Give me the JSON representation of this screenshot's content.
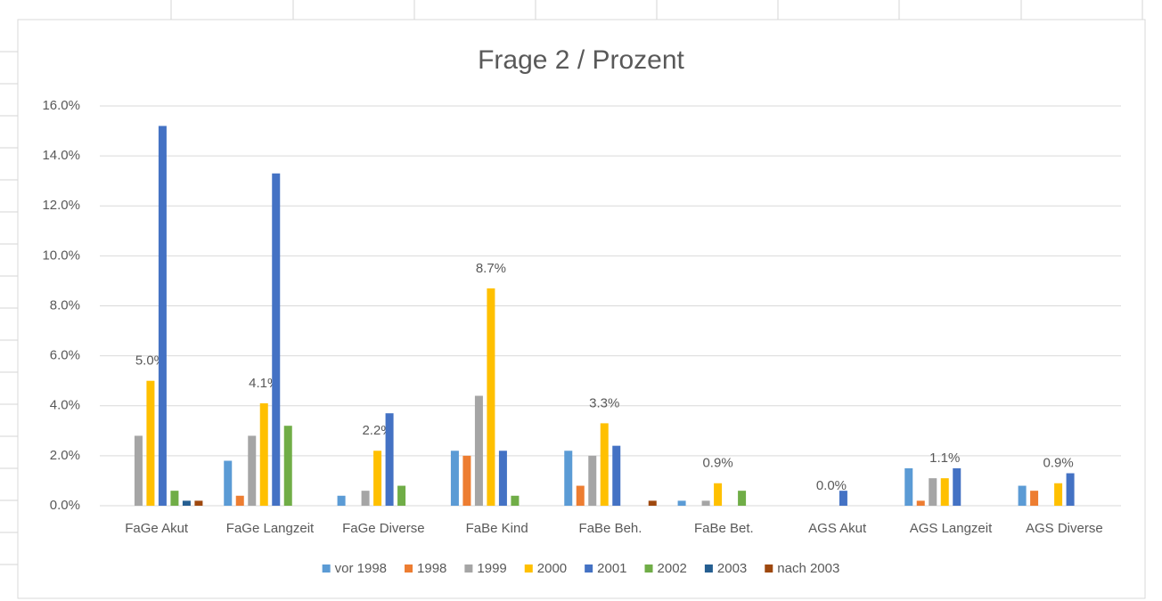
{
  "chart_data": {
    "type": "bar",
    "title": "Frage 2 / Prozent",
    "categories": [
      "FaGe Akut",
      "FaGe Langzeit",
      "FaGe Diverse",
      "FaBe Kind",
      "FaBe Beh.",
      "FaBe Bet.",
      "AGS Akut",
      "AGS Langzeit",
      "AGS Diverse"
    ],
    "series": [
      {
        "name": "vor 1998",
        "color": "#5b9bd5",
        "values": [
          0,
          1.8,
          0.4,
          2.2,
          2.2,
          0.2,
          0,
          1.5,
          0.8
        ]
      },
      {
        "name": "1998",
        "color": "#ed7d31",
        "values": [
          0,
          0.4,
          0,
          2.0,
          0.8,
          0,
          0,
          0.2,
          0.6
        ]
      },
      {
        "name": "1999",
        "color": "#a5a5a5",
        "values": [
          2.8,
          2.8,
          0.6,
          4.4,
          2.0,
          0.2,
          0,
          1.1,
          0
        ]
      },
      {
        "name": "2000",
        "color": "#ffc000",
        "values": [
          5.0,
          4.1,
          2.2,
          8.7,
          3.3,
          0.9,
          0.0,
          1.1,
          0.9
        ],
        "value_labels": [
          "5.0%",
          "4.1%",
          "2.2%",
          "8.7%",
          "3.3%",
          "0.9%",
          "0.0%",
          "1.1%",
          "0.9%"
        ]
      },
      {
        "name": "2001",
        "color": "#4472c4",
        "values": [
          15.2,
          13.3,
          3.7,
          2.2,
          2.4,
          0,
          0.6,
          1.5,
          1.3
        ]
      },
      {
        "name": "2002",
        "color": "#70ad47",
        "values": [
          0.6,
          3.2,
          0.8,
          0.4,
          0,
          0.6,
          0,
          0,
          0
        ]
      },
      {
        "name": "2003",
        "color": "#255e91",
        "values": [
          0.2,
          0,
          0,
          0,
          0,
          0,
          0,
          0,
          0
        ]
      },
      {
        "name": "nach 2003",
        "color": "#9e480e",
        "values": [
          0.2,
          0,
          0,
          0,
          0.2,
          0,
          0,
          0,
          0
        ]
      }
    ],
    "ylim": [
      0,
      16
    ],
    "yticks": [
      {
        "value": 0,
        "label": "0.0%"
      },
      {
        "value": 2,
        "label": "2.0%"
      },
      {
        "value": 4,
        "label": "4.0%"
      },
      {
        "value": 6,
        "label": "6.0%"
      },
      {
        "value": 8,
        "label": "8.0%"
      },
      {
        "value": 10,
        "label": "10.0%"
      },
      {
        "value": 12,
        "label": "12.0%"
      },
      {
        "value": 14,
        "label": "14.0%"
      },
      {
        "value": 16,
        "label": "16.0%"
      }
    ],
    "grid": true,
    "legend": "bottom"
  }
}
